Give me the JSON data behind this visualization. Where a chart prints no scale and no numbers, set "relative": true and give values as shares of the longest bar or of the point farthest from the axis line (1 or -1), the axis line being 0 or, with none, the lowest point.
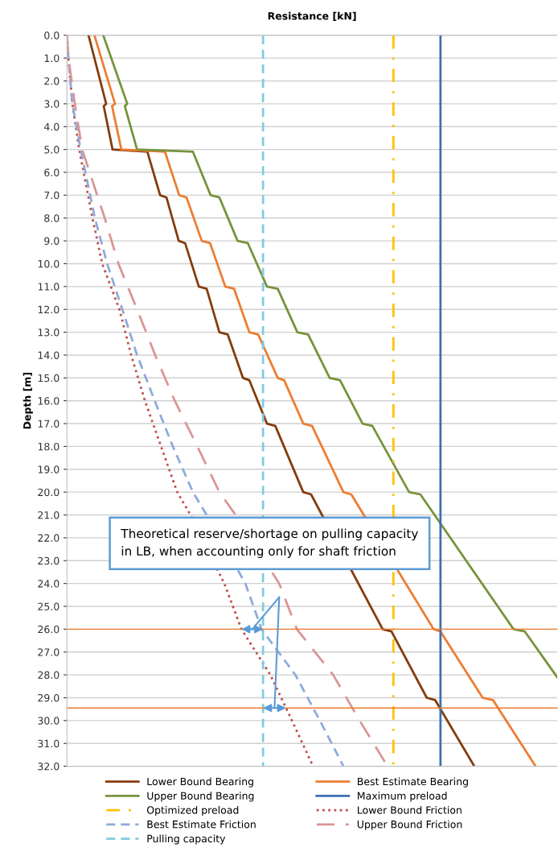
{
  "chart_data": {
    "type": "line",
    "orientation": "horizontal",
    "relative": true,
    "xlabel": "Resistance [kN]",
    "ylabel": "Depth [m]",
    "ylim": [
      32,
      0
    ],
    "yticks": [
      {
        "value": 0,
        "label": "0.0"
      },
      {
        "value": 1,
        "label": "1.0"
      },
      {
        "value": 2,
        "label": "2.0"
      },
      {
        "value": 3,
        "label": "3.0"
      },
      {
        "value": 4,
        "label": "4.0"
      },
      {
        "value": 5,
        "label": "5.0"
      },
      {
        "value": 6,
        "label": "6.0"
      },
      {
        "value": 7,
        "label": "7.0"
      },
      {
        "value": 8,
        "label": "8.0"
      },
      {
        "value": 9,
        "label": "9.0"
      },
      {
        "value": 10,
        "label": "10.0"
      },
      {
        "value": 11,
        "label": "11.0"
      },
      {
        "value": 12,
        "label": "12.0"
      },
      {
        "value": 13,
        "label": "13.0"
      },
      {
        "value": 14,
        "label": "14.0"
      },
      {
        "value": 15,
        "label": "15.0"
      },
      {
        "value": 16,
        "label": "16.0"
      },
      {
        "value": 17,
        "label": "17.0"
      },
      {
        "value": 18,
        "label": "18.0"
      },
      {
        "value": 19,
        "label": "19.0"
      },
      {
        "value": 20,
        "label": "20.0"
      },
      {
        "value": 21,
        "label": "21.0"
      },
      {
        "value": 22,
        "label": "22.0"
      },
      {
        "value": 23,
        "label": "23.0"
      },
      {
        "value": 24,
        "label": "24.0"
      },
      {
        "value": 25,
        "label": "25.0"
      },
      {
        "value": 26,
        "label": "26.0"
      },
      {
        "value": 27,
        "label": "27.0"
      },
      {
        "value": 28,
        "label": "28.0"
      },
      {
        "value": 29,
        "label": "29.0"
      },
      {
        "value": 30,
        "label": "30.0"
      },
      {
        "value": 31,
        "label": "31.0"
      },
      {
        "value": 32,
        "label": "32.0"
      }
    ],
    "grid": "y",
    "legend": "bottom",
    "series": [
      {
        "name": "Lower Bound Bearing",
        "color": "#843c0c",
        "line_style": "solid",
        "x": [
          0,
          3,
          3.1,
          5,
          5.1,
          7,
          7.1,
          9,
          9.1,
          11,
          11.1,
          13,
          13.1,
          15,
          15.1,
          17,
          17.1,
          20,
          20.1,
          26,
          26.1,
          29,
          29.1,
          32
        ],
        "values": [
          0.044,
          0.08,
          0.075,
          0.093,
          0.164,
          0.19,
          0.203,
          0.228,
          0.241,
          0.269,
          0.285,
          0.311,
          0.328,
          0.359,
          0.372,
          0.408,
          0.425,
          0.482,
          0.498,
          0.644,
          0.662,
          0.734,
          0.751,
          0.831
        ]
      },
      {
        "name": "Best Estimate Bearing",
        "color": "#ed7d31",
        "line_style": "solid",
        "x": [
          0,
          3,
          3.1,
          5,
          5.1,
          7,
          7.1,
          9,
          9.1,
          11,
          11.1,
          13,
          13.1,
          15,
          15.1,
          17,
          17.1,
          20,
          20.1,
          26,
          26.1,
          29,
          29.1,
          32
        ],
        "values": [
          0.056,
          0.098,
          0.092,
          0.111,
          0.2,
          0.229,
          0.244,
          0.275,
          0.292,
          0.323,
          0.341,
          0.372,
          0.39,
          0.43,
          0.443,
          0.482,
          0.5,
          0.564,
          0.58,
          0.748,
          0.762,
          0.848,
          0.869,
          0.956
        ]
      },
      {
        "name": "Upper Bound Bearing",
        "color": "#77933c",
        "line_style": "solid",
        "x": [
          0,
          3,
          3.1,
          5,
          5.1,
          7,
          7.1,
          9,
          9.1,
          11,
          11.1,
          13,
          13.1,
          15,
          15.1,
          17,
          17.1,
          20,
          20.1,
          26,
          26.1,
          28.1
        ],
        "values": [
          0.074,
          0.123,
          0.118,
          0.143,
          0.257,
          0.293,
          0.311,
          0.348,
          0.369,
          0.408,
          0.43,
          0.47,
          0.492,
          0.536,
          0.557,
          0.603,
          0.623,
          0.698,
          0.721,
          0.911,
          0.934,
          1.0
        ]
      },
      {
        "name": "Maximum preload",
        "color": "#3e6fb0",
        "line_style": "solid",
        "x": [
          0,
          32
        ],
        "values": [
          0.762,
          0.762
        ]
      },
      {
        "name": "Optimized preload",
        "color": "#ffc000",
        "line_style": "dashdot",
        "x": [
          0,
          32
        ],
        "values": [
          0.666,
          0.666
        ]
      },
      {
        "name": "Lower Bound Friction",
        "color": "#c0504d",
        "line_style": "dotted",
        "x": [
          0,
          1,
          3,
          5,
          8,
          10,
          12,
          14,
          16,
          18,
          20,
          21,
          24,
          26,
          28,
          30,
          32
        ],
        "values": [
          0,
          0.003,
          0.011,
          0.025,
          0.052,
          0.072,
          0.107,
          0.131,
          0.159,
          0.192,
          0.225,
          0.252,
          0.321,
          0.356,
          0.415,
          0.459,
          0.502
        ]
      },
      {
        "name": "Best Estimate Friction",
        "color": "#8eaadb",
        "line_style": "dashed",
        "x": [
          0,
          1,
          3,
          5,
          8,
          10,
          12,
          14,
          16,
          18,
          20,
          21,
          24,
          26,
          28,
          30,
          32
        ],
        "values": [
          0,
          0.003,
          0.011,
          0.028,
          0.057,
          0.082,
          0.113,
          0.143,
          0.179,
          0.216,
          0.257,
          0.285,
          0.364,
          0.397,
          0.466,
          0.516,
          0.564
        ]
      },
      {
        "name": "Upper Bound Friction",
        "color": "#d99694",
        "line_style": "longdash",
        "x": [
          0,
          1,
          3,
          5,
          8,
          10,
          12,
          14,
          16,
          18,
          20,
          21,
          24,
          26,
          28,
          30,
          32
        ],
        "values": [
          0,
          0.003,
          0.016,
          0.031,
          0.077,
          0.105,
          0.143,
          0.18,
          0.22,
          0.266,
          0.311,
          0.344,
          0.433,
          0.469,
          0.543,
          0.597,
          0.654
        ]
      },
      {
        "name": "Pulling capacity",
        "color": "#7fcce0",
        "line_style": "dashed",
        "x": [
          0,
          32
        ],
        "values": [
          0.4,
          0.4
        ]
      }
    ],
    "ref_lines": [
      {
        "axis": "y",
        "value": 26.0,
        "color": "#ed7d31"
      },
      {
        "axis": "y",
        "value": 29.45,
        "color": "#ed7d31"
      }
    ],
    "annotations": [
      "Theoretical reserve/shortage on pulling capacity\nin LB, when accounting only for shaft friction"
    ]
  }
}
